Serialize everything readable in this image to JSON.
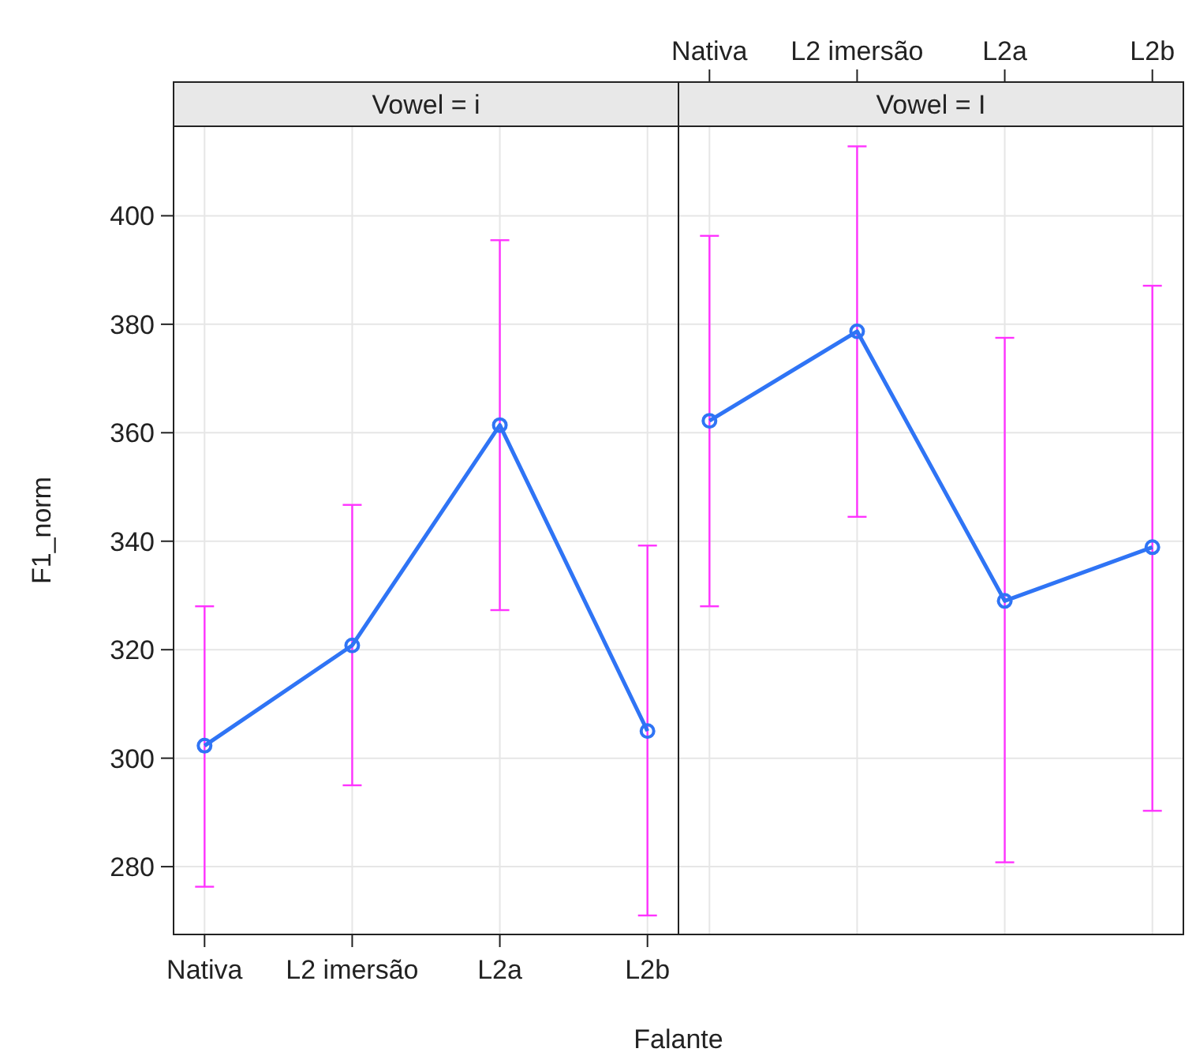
{
  "chart_data": [
    {
      "type": "line",
      "title": "Vowel = i",
      "xlabel": "Falante",
      "ylabel": "F1_norm",
      "categories": [
        "Nativa",
        "L2 imersão",
        "L2a",
        "L2b"
      ],
      "series": [
        {
          "color": "#2f74f5",
          "values": [
            302.3,
            320.8,
            361.4,
            305
          ],
          "errors": [
            [
              276.3,
              328
            ],
            [
              295,
              346.7
            ],
            [
              327.3,
              395.5
            ],
            [
              271,
              339.2
            ]
          ]
        }
      ],
      "ylim": [
        267.5,
        416.5
      ],
      "yticks": [
        280,
        300,
        320,
        340,
        360,
        380,
        400
      ],
      "grid": true,
      "marker": "circle"
    },
    {
      "type": "line",
      "title": "Vowel = I",
      "categories": [
        "Nativa",
        "L2 imersão",
        "L2a",
        "L2b"
      ],
      "series": [
        {
          "color": "#2f74f5",
          "values": [
            362.2,
            378.7,
            329,
            338.9
          ],
          "errors": [
            [
              328,
              396.3
            ],
            [
              344.5,
              412.8
            ],
            [
              280.8,
              377.5
            ],
            [
              290.3,
              387.1
            ]
          ]
        }
      ],
      "ylim": [
        267.5,
        416.5
      ],
      "yticks": [
        280,
        300,
        320,
        340,
        360,
        380,
        400
      ],
      "grid": true,
      "marker": "circle",
      "tick_labels": "x"
    }
  ]
}
